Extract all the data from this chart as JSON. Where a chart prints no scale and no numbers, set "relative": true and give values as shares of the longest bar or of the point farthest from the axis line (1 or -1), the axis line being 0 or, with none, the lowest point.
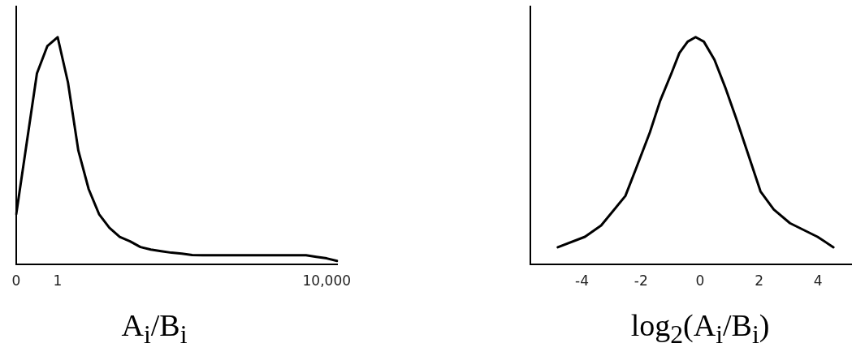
{
  "chart_data": [
    {
      "type": "line",
      "xlabel": "A$_{i}$/B$_{i}$",
      "relative": true,
      "categories": [
        "0",
        null,
        null,
        null,
        "1",
        null,
        null,
        null,
        null,
        null,
        null,
        null,
        null,
        null,
        null,
        null,
        null,
        null,
        null,
        null,
        null,
        null,
        null,
        null,
        null,
        null,
        null,
        null,
        null,
        null,
        "10,000",
        null
      ],
      "series": [
        {
          "color": "#000000",
          "values": [
            0.22,
            0.53,
            0.84,
            0.96,
            1,
            0.8,
            0.5,
            0.33,
            0.22,
            0.16,
            0.12,
            0.1,
            0.075,
            0.064,
            0.057,
            0.05,
            0.046,
            0.04,
            0.039,
            0.039,
            0.039,
            0.039,
            0.039,
            0.039,
            0.039,
            0.039,
            0.039,
            0.039,
            0.039,
            0.032,
            0.025,
            0.014
          ]
        }
      ],
      "grid": false,
      "legend": false,
      "marker": "none",
      "line_style": "solid"
    },
    {
      "type": "line",
      "xlabel": "log$_{2}$(A$_{i}$/B$_{i}$)",
      "relative": true,
      "xlim": [
        -5.75,
        5.15
      ],
      "xticks": [
        -4,
        -2,
        0,
        2,
        4
      ],
      "x": [
        -4.82,
        -3.9,
        -3.35,
        -2.53,
        -2.17,
        -1.7,
        -1.35,
        -0.97,
        -0.7,
        -0.42,
        -0.15,
        0.13,
        0.49,
        0.85,
        1.23,
        1.59,
        2.05,
        2.5,
        3.05,
        3.98,
        4.52
      ],
      "series": [
        {
          "color": "#000000",
          "values": [
            0.074,
            0.12,
            0.17,
            0.3,
            0.42,
            0.58,
            0.72,
            0.84,
            0.93,
            0.98,
            1,
            0.98,
            0.9,
            0.78,
            0.64,
            0.5,
            0.32,
            0.24,
            0.18,
            0.12,
            0.074
          ]
        }
      ],
      "grid": false,
      "legend": false,
      "marker": "none",
      "line_style": "solid"
    }
  ]
}
